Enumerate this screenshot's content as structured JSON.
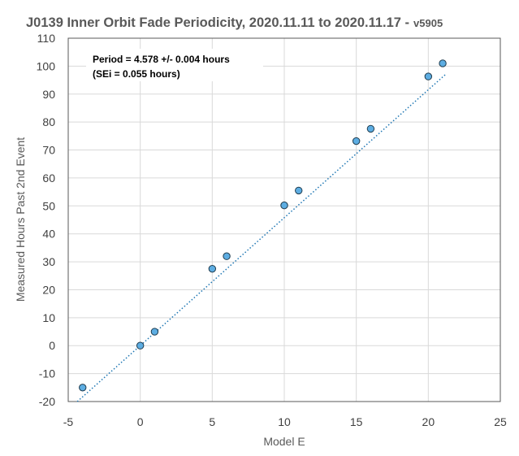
{
  "chart_data": {
    "type": "scatter",
    "title": "J0139 Inner Orbit Fade Periodicity, 2020.11.11 to 2020.11.17 -",
    "title_suffix": "v5905",
    "xlabel": "Model E",
    "ylabel": "Measured Hours Past 2nd Event",
    "xlim": [
      -5,
      25
    ],
    "ylim": [
      -20,
      110
    ],
    "x_ticks": [
      -5,
      0,
      5,
      10,
      15,
      20,
      25
    ],
    "y_ticks": [
      -20,
      -10,
      0,
      10,
      20,
      30,
      40,
      50,
      60,
      70,
      80,
      90,
      100,
      110
    ],
    "grid": true,
    "legend": "none",
    "series": [
      {
        "points": [
          {
            "x": -4,
            "y": -15
          },
          {
            "x": 0,
            "y": 0
          },
          {
            "x": 1,
            "y": 5
          },
          {
            "x": 5,
            "y": 27.5
          },
          {
            "x": 6,
            "y": 32
          },
          {
            "x": 10,
            "y": 50.2
          },
          {
            "x": 11,
            "y": 55.5
          },
          {
            "x": 15,
            "y": 73.2
          },
          {
            "x": 16,
            "y": 77.6
          },
          {
            "x": 20,
            "y": 96.3
          },
          {
            "x": 21,
            "y": 101
          }
        ],
        "marker_color": "#5dade2",
        "marker_edge": "#1f3b4d"
      }
    ],
    "trendline": {
      "slope": 4.578,
      "intercept": 0,
      "style": "dotted",
      "color": "#1f77b4"
    },
    "annotation": {
      "line1": "Period = 4.578 +/- 0.004 hours",
      "line2": "(SEi = 0.055 hours)"
    }
  }
}
